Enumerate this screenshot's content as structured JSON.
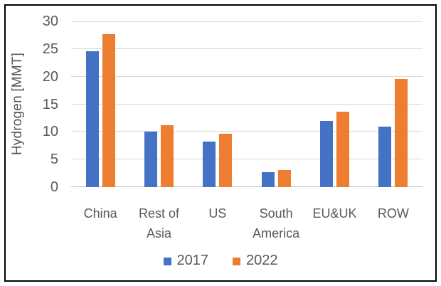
{
  "figure": {
    "background": "#FFFFFF",
    "border_color": "#000000"
  },
  "chart_data": {
    "type": "bar",
    "title": "",
    "xlabel": "",
    "ylabel": "Hydrogen [MMT]",
    "categories": [
      "China",
      "Rest of Asia",
      "US",
      "South America",
      "EU&UK",
      "ROW"
    ],
    "series": [
      {
        "name": "2017",
        "color": "#4472C4",
        "values": [
          24.6,
          10.0,
          8.3,
          2.7,
          12.0,
          11.0
        ]
      },
      {
        "name": "2022",
        "color": "#ED7D31",
        "values": [
          27.7,
          11.2,
          9.6,
          3.1,
          13.7,
          19.6
        ]
      }
    ],
    "y_ticks": [
      0,
      5,
      10,
      15,
      20,
      25,
      30
    ],
    "ylim": [
      0,
      30
    ],
    "grid": true,
    "legend_position": "bottom",
    "colors": {
      "gridline": "#D9D9D9",
      "axis_line": "#BFBFBF",
      "text": "#595959"
    }
  }
}
